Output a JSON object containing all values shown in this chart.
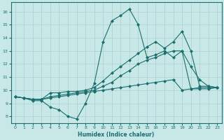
{
  "xlabel": "Humidex (Indice chaleur)",
  "bg_color": "#c8e8e8",
  "grid_color": "#aacece",
  "line_color": "#1a6e6e",
  "marker": "D",
  "markersize": 2.0,
  "linewidth": 0.8,
  "xlim": [
    -0.5,
    23.5
  ],
  "ylim": [
    7.5,
    16.7
  ],
  "xticks": [
    0,
    1,
    2,
    3,
    4,
    5,
    6,
    7,
    8,
    9,
    10,
    11,
    12,
    13,
    14,
    15,
    16,
    17,
    18,
    19,
    20,
    21,
    22,
    23
  ],
  "yticks": [
    8,
    9,
    10,
    11,
    12,
    13,
    14,
    15,
    16
  ],
  "series": [
    [
      9.5,
      9.4,
      9.2,
      9.2,
      8.7,
      8.5,
      8.0,
      7.8,
      9.0,
      10.5,
      13.7,
      15.3,
      15.7,
      16.2,
      15.0,
      12.5,
      12.7,
      13.0,
      12.5,
      13.0,
      11.8,
      10.8,
      10.3,
      10.2
    ],
    [
      9.5,
      9.4,
      9.3,
      9.3,
      9.8,
      9.8,
      9.9,
      9.9,
      10.0,
      10.2,
      10.7,
      11.3,
      11.8,
      12.3,
      12.8,
      13.3,
      13.7,
      13.2,
      13.7,
      14.5,
      13.0,
      10.3,
      10.3,
      10.2
    ],
    [
      9.5,
      9.4,
      9.3,
      9.3,
      9.5,
      9.6,
      9.7,
      9.8,
      9.9,
      10.0,
      10.3,
      10.6,
      11.1,
      11.5,
      12.0,
      12.3,
      12.5,
      12.8,
      13.0,
      13.0,
      10.1,
      10.2,
      10.2,
      10.2
    ],
    [
      9.5,
      9.4,
      9.3,
      9.3,
      9.4,
      9.5,
      9.6,
      9.7,
      9.8,
      9.9,
      10.0,
      10.1,
      10.2,
      10.3,
      10.4,
      10.5,
      10.6,
      10.7,
      10.8,
      10.0,
      10.1,
      10.1,
      10.1,
      10.2
    ]
  ]
}
